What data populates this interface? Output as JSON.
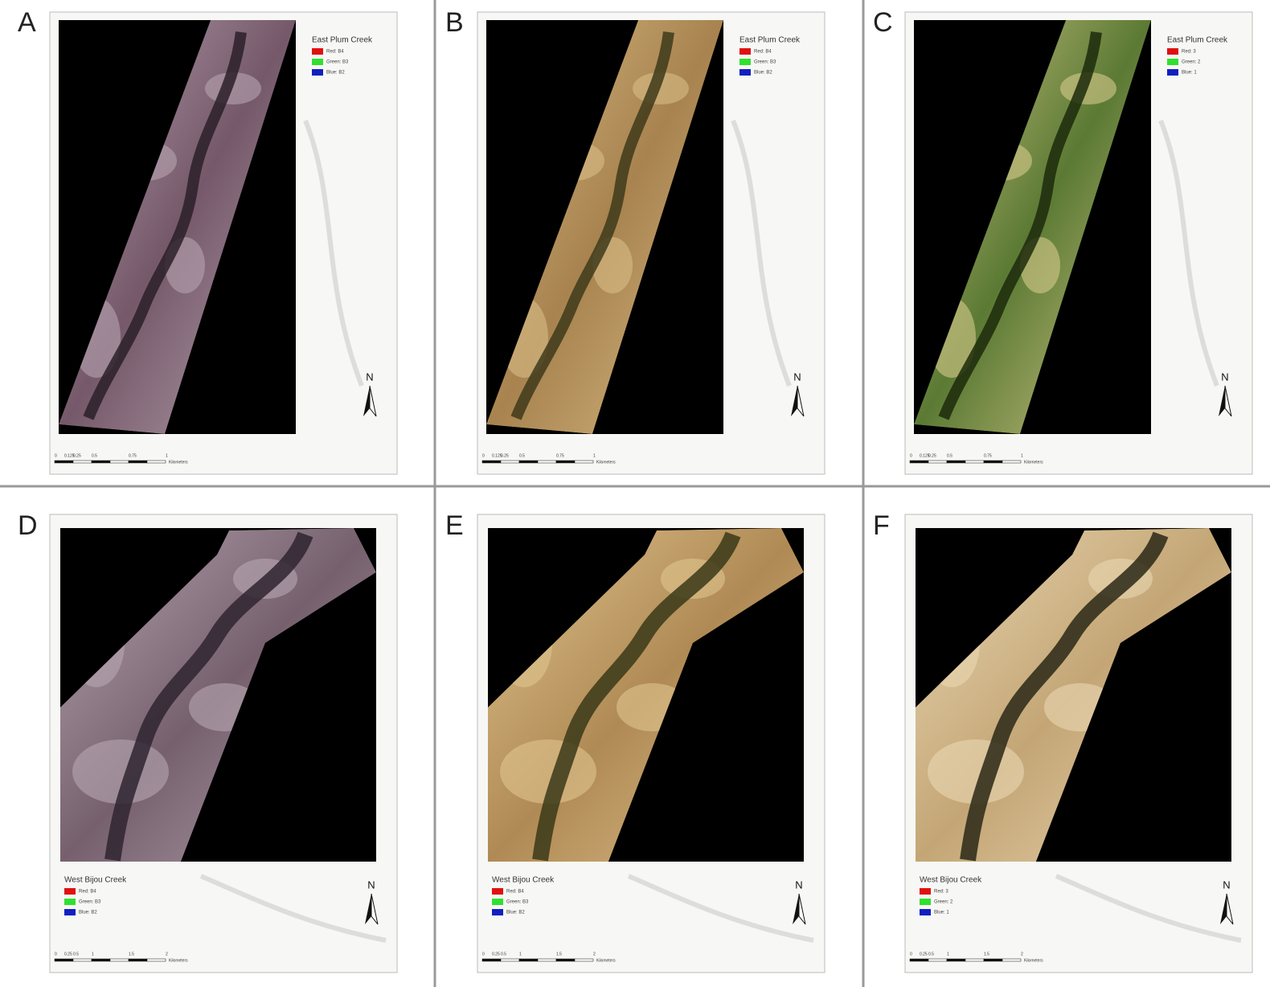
{
  "panels": [
    {
      "letter": "A",
      "title": "East Plum Creek",
      "legend": [
        {
          "label": "Red: B4",
          "color": "#e01010"
        },
        {
          "label": "Green: B3",
          "color": "#30e030"
        },
        {
          "label": "Blue: B2",
          "color": "#1020c0"
        }
      ],
      "north": "N",
      "scale": [
        "0",
        "0.125",
        "0.25",
        "0.5",
        "0.75",
        "1",
        "Kilometers"
      ]
    },
    {
      "letter": "B",
      "title": "East Plum Creek",
      "legend": [
        {
          "label": "Red: B4",
          "color": "#e01010"
        },
        {
          "label": "Green: B3",
          "color": "#30e030"
        },
        {
          "label": "Blue: B2",
          "color": "#1020c0"
        }
      ],
      "north": "N",
      "scale": [
        "0",
        "0.125",
        "0.25",
        "0.5",
        "0.75",
        "1",
        "Kilometers"
      ]
    },
    {
      "letter": "C",
      "title": "East Plum Creek",
      "legend": [
        {
          "label": "Red: 3",
          "color": "#e01010"
        },
        {
          "label": "Green: 2",
          "color": "#30e030"
        },
        {
          "label": "Blue: 1",
          "color": "#1020c0"
        }
      ],
      "north": "N",
      "scale": [
        "0",
        "0.125",
        "0.25",
        "0.5",
        "0.75",
        "1",
        "Kilometers"
      ]
    },
    {
      "letter": "D",
      "title": "West Bijou Creek",
      "legend": [
        {
          "label": "Red: B4",
          "color": "#e01010"
        },
        {
          "label": "Green: B3",
          "color": "#30e030"
        },
        {
          "label": "Blue: B2",
          "color": "#1020c0"
        }
      ],
      "north": "N",
      "scale": [
        "0",
        "0.25",
        "0.5",
        "1",
        "1.5",
        "2",
        "Kilometers"
      ]
    },
    {
      "letter": "E",
      "title": "West Bijou Creek",
      "legend": [
        {
          "label": "Red: B4",
          "color": "#e01010"
        },
        {
          "label": "Green: B3",
          "color": "#30e030"
        },
        {
          "label": "Blue: B2",
          "color": "#1020c0"
        }
      ],
      "north": "N",
      "scale": [
        "0",
        "0.25",
        "0.5",
        "1",
        "1.5",
        "2",
        "Kilometers"
      ]
    },
    {
      "letter": "F",
      "title": "West Bijou Creek",
      "legend": [
        {
          "label": "Red: 3",
          "color": "#e01010"
        },
        {
          "label": "Green: 2",
          "color": "#30e030"
        },
        {
          "label": "Blue: 1",
          "color": "#1020c0"
        }
      ],
      "north": "N",
      "scale": [
        "0",
        "0.25",
        "0.5",
        "1",
        "1.5",
        "2",
        "Kilometers"
      ]
    }
  ]
}
